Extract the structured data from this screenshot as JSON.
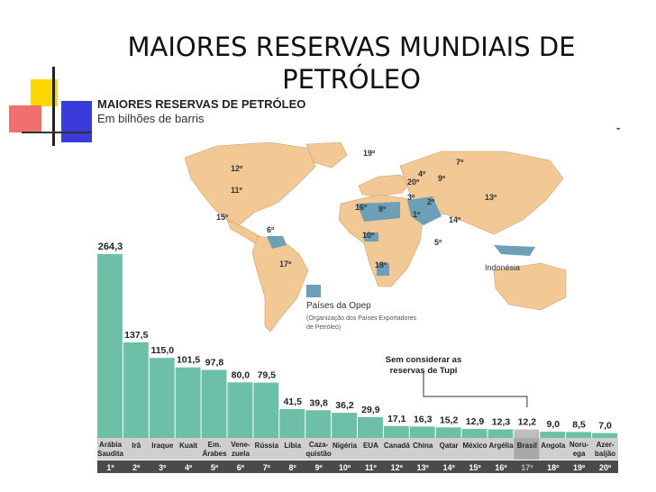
{
  "slide": {
    "title": "MAIORES RESERVAS MUNDIAIS DE PETRÓLEO"
  },
  "figure": {
    "title": "MAIORES RESERVAS DE PETRÓLEO",
    "subtitle": "Em bilhões de barris",
    "dash": "-"
  },
  "colors": {
    "bar": "#6dbfa8",
    "bar_highlight": "#bdbdbd",
    "land": "#f2c894",
    "opec": "#6d9fb8",
    "ocean": "#ffffff",
    "label_band": "#cfcfcf",
    "rank_band": "#4a4a4a"
  },
  "map": {
    "rank_labels": [
      "1º",
      "2º",
      "3º",
      "4º",
      "5º",
      "6º",
      "7º",
      "8º",
      "9º",
      "10º",
      "11º",
      "12º",
      "13º",
      "14º",
      "15º",
      "16º",
      "17º",
      "18º",
      "19º",
      "20º"
    ],
    "indonesia_label": "Indonésia",
    "legend_title": "Países da Opep",
    "legend_note": "(Organização dos Países Exportadores de Petróleo)"
  },
  "annotation": {
    "text": "Sem considerar as reservas de Tupi"
  },
  "chart_data": {
    "type": "bar",
    "title": "MAIORES RESERVAS DE PETRÓLEO",
    "subtitle": "Em bilhões de barris",
    "categories": [
      "Arábia Saudita",
      "Irã",
      "Iraque",
      "Kuait",
      "Em. Árabes",
      "Vene- zuela",
      "Rússia",
      "Líbia",
      "Caza- quistão",
      "Nigéria",
      "EUA",
      "Canadá",
      "China",
      "Qatar",
      "México",
      "Argélia",
      "Brasil",
      "Angola",
      "Noru- ega",
      "Azer- baijão"
    ],
    "values": [
      264.3,
      137.5,
      115.0,
      101.5,
      97.8,
      80.0,
      79.5,
      41.5,
      39.8,
      36.2,
      29.9,
      17.1,
      16.3,
      15.2,
      12.9,
      12.3,
      12.2,
      9.0,
      8.5,
      7.0
    ],
    "value_labels": [
      "264,3",
      "137,5",
      "115,0",
      "101,5",
      "97,8",
      "80,0",
      "79,5",
      "41,5",
      "39,8",
      "36,2",
      "29,9",
      "17,1",
      "16,3",
      "15,2",
      "12,9",
      "12,3",
      "12,2",
      "9,0",
      "8,5",
      "7,0"
    ],
    "ranks": [
      "1º",
      "2º",
      "3º",
      "4º",
      "5º",
      "6º",
      "7º",
      "8º",
      "9º",
      "10º",
      "11º",
      "12º",
      "13º",
      "14º",
      "15º",
      "16º",
      "17º",
      "18º",
      "19º",
      "20º"
    ],
    "highlight_index": 16,
    "ylim": [
      0,
      264.3
    ]
  }
}
